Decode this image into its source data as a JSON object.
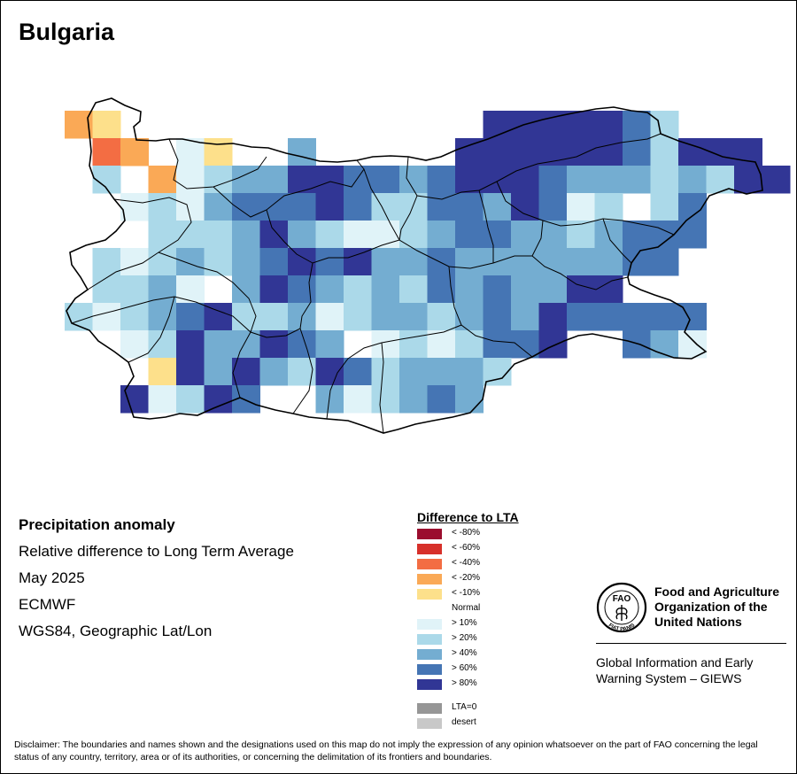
{
  "title": "Bulgaria",
  "info": {
    "product": "Precipitation anomaly",
    "description": "Relative difference to Long Term Average",
    "period": "May 2025",
    "source": "ECMWF",
    "projection": "WGS84, Geographic Lat/Lon"
  },
  "legend": {
    "title": "Difference to LTA",
    "items": [
      {
        "label": "< -80%",
        "color": "#9b0d2e"
      },
      {
        "label": "< -60%",
        "color": "#d7302a"
      },
      {
        "label": "< -40%",
        "color": "#f36d43"
      },
      {
        "label": "< -20%",
        "color": "#faa956"
      },
      {
        "label": "< -10%",
        "color": "#fde08b"
      },
      {
        "label": "Normal",
        "color": "#ffffff"
      },
      {
        "label": "> 10%",
        "color": "#e0f3f8"
      },
      {
        "label": "> 20%",
        "color": "#abd9e9"
      },
      {
        "label": "> 40%",
        "color": "#74add1"
      },
      {
        "label": "> 60%",
        "color": "#4575b4"
      },
      {
        "label": "> 80%",
        "color": "#313695"
      },
      {
        "label": "LTA=0",
        "color": "#969696"
      },
      {
        "label": "desert",
        "color": "#c8c8c8"
      }
    ]
  },
  "fao": {
    "name_line1": "Food and Agriculture",
    "name_line2": "Organization of the",
    "name_line3": "United Nations",
    "logo_text": "FAO",
    "logo_motto": "FIAT PANIS",
    "system_line1": "Global Information and Early",
    "system_line2": "Warning System – GIEWS"
  },
  "disclaimer": "Disclaimer: The boundaries and names shown and the designations used on this map do not imply the expression of any opinion whatsoever on the part of FAO concerning the legal status of any country, territory, area or of its authorities, or concerning the delimitation of its frontiers and boundaries.",
  "grid_start_col": 2,
  "grid_start_row": 1,
  "grid": [
    "kk....................",
    "kk.......b.....VVVVVAb",
    "rkN.HnD....b.......VVVVVVbVVVV",
    "..kN...a.ebbbb...BbbVVbbVVbbBBbVV",
    "..Nb....BDDAabDbbbbDbBAbbb",
    "....Db.a...bnbnDn"
  ]
}
